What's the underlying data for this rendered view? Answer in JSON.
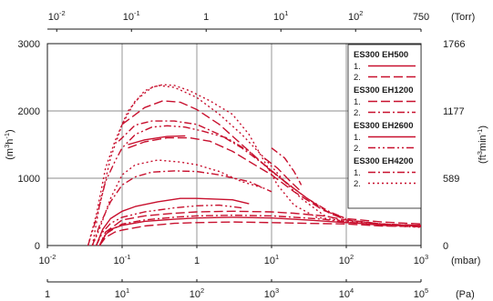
{
  "chart_data": {
    "type": "line",
    "title": "",
    "x_axis_bottom": {
      "unit_label": "(mbar)",
      "scale": "log",
      "range": [
        0.01,
        1000
      ],
      "ticks": [
        {
          "value": 0.01,
          "base": "10",
          "exp": "-2"
        },
        {
          "value": 0.1,
          "base": "10",
          "exp": "-1"
        },
        {
          "value": 1,
          "base": "1",
          "exp": ""
        },
        {
          "value": 10,
          "base": "10",
          "exp": "1"
        },
        {
          "value": 100,
          "base": "10",
          "exp": "2"
        },
        {
          "value": 1000,
          "base": "10",
          "exp": "3"
        }
      ]
    },
    "x_axis_pa": {
      "unit_label": "(Pa)",
      "scale": "log",
      "ticks": [
        {
          "value": 1,
          "base": "1",
          "exp": ""
        },
        {
          "value": 10,
          "base": "10",
          "exp": "1"
        },
        {
          "value": 100,
          "base": "10",
          "exp": "2"
        },
        {
          "value": 1000,
          "base": "10",
          "exp": "3"
        },
        {
          "value": 10000,
          "base": "10",
          "exp": "4"
        },
        {
          "value": 100000,
          "base": "10",
          "exp": "5"
        }
      ]
    },
    "x_axis_top": {
      "unit_label": "(Torr)",
      "scale": "log",
      "ticks": [
        {
          "value": 0.01,
          "base": "10",
          "exp": "-2"
        },
        {
          "value": 0.1,
          "base": "10",
          "exp": "-1"
        },
        {
          "value": 1,
          "base": "1",
          "exp": ""
        },
        {
          "value": 10,
          "base": "10",
          "exp": "1"
        },
        {
          "value": 100,
          "base": "10",
          "exp": "2"
        },
        {
          "value": 750,
          "base": "750",
          "exp": ""
        }
      ]
    },
    "y_axis_left": {
      "unit_base": "(m",
      "unit_sup1": "3",
      "unit_mid": "h",
      "unit_sup2": "-1",
      "unit_end": ")",
      "range": [
        0,
        3000
      ],
      "ticks": [
        "0",
        "1000",
        "2000",
        "3000"
      ]
    },
    "y_axis_right": {
      "unit_base": "(ft",
      "unit_sup1": "3",
      "unit_mid": "min",
      "unit_sup2": "-1",
      "unit_end": ")",
      "ticks": [
        {
          "value": 0,
          "label": "0"
        },
        {
          "value": 589,
          "label": "589"
        },
        {
          "value": 1177,
          "label": "1177"
        },
        {
          "value": 1766,
          "label": "1766"
        }
      ]
    },
    "grid": true,
    "line_color": "#c8102e",
    "legend": {
      "placement": "top-right",
      "groups": [
        {
          "title": "ES300 EH500",
          "entries": [
            "1.",
            "2."
          ]
        },
        {
          "title": "ES300 EH1200",
          "entries": [
            "1.",
            "2."
          ]
        },
        {
          "title": "ES300 EH2600",
          "entries": [
            "1.",
            "2."
          ]
        },
        {
          "title": "ES300 EH4200",
          "entries": [
            "1.",
            "2."
          ]
        }
      ]
    },
    "series": [
      {
        "group": 0,
        "entry": 0,
        "points": [
          [
            0.05,
            0
          ],
          [
            0.06,
            160
          ],
          [
            0.07,
            240
          ],
          [
            0.1,
            300
          ],
          [
            0.2,
            360
          ],
          [
            0.5,
            390
          ],
          [
            1,
            410
          ],
          [
            3,
            420
          ],
          [
            10,
            410
          ],
          [
            30,
            380
          ],
          [
            100,
            340
          ],
          [
            300,
            310
          ],
          [
            1000,
            300
          ]
        ]
      },
      {
        "group": 0,
        "entry": 1,
        "points": [
          [
            0.05,
            0
          ],
          [
            0.06,
            120
          ],
          [
            0.08,
            200
          ],
          [
            0.1,
            230
          ],
          [
            0.2,
            290
          ],
          [
            0.5,
            330
          ],
          [
            1,
            340
          ],
          [
            3,
            350
          ],
          [
            10,
            340
          ],
          [
            30,
            330
          ],
          [
            100,
            320
          ],
          [
            300,
            290
          ],
          [
            1000,
            280
          ]
        ]
      },
      {
        "group": 1,
        "entry": 0,
        "points": [
          [
            0.05,
            0
          ],
          [
            0.06,
            200
          ],
          [
            0.08,
            300
          ],
          [
            0.1,
            380
          ],
          [
            0.2,
            440
          ],
          [
            0.5,
            480
          ],
          [
            1,
            500
          ],
          [
            3,
            510
          ],
          [
            10,
            500
          ],
          [
            20,
            480
          ],
          [
            50,
            440
          ],
          [
            100,
            380
          ],
          [
            300,
            320
          ],
          [
            1000,
            300
          ]
        ]
      },
      {
        "group": 1,
        "entry": 1,
        "points": [
          [
            0.05,
            0
          ],
          [
            0.06,
            170
          ],
          [
            0.08,
            260
          ],
          [
            0.1,
            320
          ],
          [
            0.2,
            380
          ],
          [
            0.5,
            420
          ],
          [
            1,
            440
          ],
          [
            3,
            450
          ],
          [
            10,
            440
          ],
          [
            20,
            420
          ],
          [
            50,
            390
          ],
          [
            100,
            350
          ],
          [
            300,
            300
          ],
          [
            1000,
            290
          ]
        ]
      },
      {
        "group": 2,
        "entry": 0,
        "points": [
          [
            0.045,
            0
          ],
          [
            0.055,
            240
          ],
          [
            0.07,
            400
          ],
          [
            0.1,
            510
          ],
          [
            0.15,
            580
          ],
          [
            0.3,
            650
          ],
          [
            0.6,
            700
          ],
          [
            1,
            700
          ],
          [
            3,
            680
          ],
          [
            5,
            620
          ]
        ]
      },
      {
        "group": 2,
        "entry": 1,
        "points": [
          [
            0.045,
            0
          ],
          [
            0.055,
            200
          ],
          [
            0.07,
            330
          ],
          [
            0.1,
            420
          ],
          [
            0.2,
            500
          ],
          [
            0.5,
            560
          ],
          [
            1,
            590
          ],
          [
            2,
            600
          ],
          [
            4,
            560
          ]
        ]
      },
      {
        "group": 3,
        "entry": 0,
        "points": [
          [
            0.04,
            0
          ],
          [
            0.05,
            300
          ],
          [
            0.07,
            650
          ],
          [
            0.1,
            900
          ],
          [
            0.15,
            1020
          ],
          [
            0.25,
            1090
          ],
          [
            0.5,
            1110
          ],
          [
            1,
            1100
          ],
          [
            2,
            1050
          ],
          [
            5,
            950
          ],
          [
            10,
            800
          ]
        ]
      },
      {
        "group": 3,
        "entry": 1,
        "points": [
          [
            0.04,
            0
          ],
          [
            0.05,
            250
          ],
          [
            0.07,
            700
          ],
          [
            0.1,
            1050
          ],
          [
            0.15,
            1200
          ],
          [
            0.3,
            1270
          ],
          [
            0.6,
            1240
          ],
          [
            1,
            1200
          ],
          [
            2,
            1100
          ],
          [
            4,
            950
          ],
          [
            8,
            850
          ]
        ]
      }
    ],
    "overlay_series": [
      {
        "style": "long-dash",
        "points": [
          [
            0.12,
            1450
          ],
          [
            0.2,
            1540
          ],
          [
            0.4,
            1600
          ],
          [
            0.8,
            1600
          ],
          [
            1.5,
            1550
          ],
          [
            3,
            1400
          ],
          [
            5,
            1250
          ],
          [
            10,
            1050
          ],
          [
            20,
            800
          ],
          [
            50,
            520
          ],
          [
            100,
            400
          ],
          [
            300,
            350
          ],
          [
            1000,
            320
          ]
        ]
      },
      {
        "style": "solid",
        "points": [
          [
            0.12,
            1500
          ],
          [
            0.2,
            1570
          ],
          [
            0.4,
            1620
          ],
          [
            0.7,
            1630
          ]
        ]
      },
      {
        "style": "dash-dot",
        "points": [
          [
            0.09,
            1550
          ],
          [
            0.15,
            1790
          ],
          [
            0.25,
            1850
          ],
          [
            0.5,
            1850
          ],
          [
            1,
            1800
          ],
          [
            2,
            1650
          ],
          [
            4,
            1450
          ],
          [
            8,
            1200
          ],
          [
            15,
            950
          ],
          [
            30,
            700
          ],
          [
            60,
            500
          ],
          [
            100,
            400
          ]
        ]
      },
      {
        "style": "long-dash",
        "points": [
          [
            0.1,
            1800
          ],
          [
            0.2,
            2050
          ],
          [
            0.35,
            2150
          ],
          [
            0.6,
            2130
          ],
          [
            1,
            2020
          ],
          [
            2,
            1800
          ],
          [
            4,
            1500
          ],
          [
            8,
            1200
          ],
          [
            15,
            950
          ],
          [
            30,
            700
          ],
          [
            60,
            480
          ],
          [
            100,
            380
          ],
          [
            300,
            320
          ],
          [
            1000,
            290
          ]
        ]
      },
      {
        "style": "dotted",
        "points": [
          [
            0.035,
            0
          ],
          [
            0.045,
            450
          ],
          [
            0.06,
            1150
          ],
          [
            0.08,
            1550
          ],
          [
            0.12,
            2000
          ],
          [
            0.2,
            2300
          ],
          [
            0.3,
            2380
          ],
          [
            0.5,
            2350
          ],
          [
            1,
            2200
          ],
          [
            2,
            1950
          ],
          [
            4,
            1650
          ],
          [
            8,
            1300
          ],
          [
            15,
            950
          ],
          [
            25,
            700
          ],
          [
            50,
            450
          ],
          [
            100,
            350
          ],
          [
            300,
            300
          ],
          [
            1000,
            270
          ]
        ]
      },
      {
        "style": "dash-dot",
        "points": [
          [
            10,
            1450
          ],
          [
            15,
            1300
          ],
          [
            20,
            1100
          ],
          [
            25,
            900
          ]
        ]
      },
      {
        "style": "long-dash",
        "points": [
          [
            8,
            1300
          ],
          [
            12,
            1150
          ],
          [
            18,
            950
          ],
          [
            25,
            800
          ]
        ]
      },
      {
        "style": "dash-dot-dot",
        "points": [
          [
            0.035,
            0
          ],
          [
            0.045,
            400
          ],
          [
            0.06,
            950
          ],
          [
            0.08,
            1250
          ],
          [
            0.1,
            1450
          ],
          [
            0.15,
            1650
          ],
          [
            0.25,
            1760
          ],
          [
            0.4,
            1780
          ],
          [
            0.7,
            1760
          ],
          [
            1.2,
            1700
          ],
          [
            2.5,
            1600
          ],
          [
            5,
            1400
          ],
          [
            10,
            1100
          ],
          [
            20,
            850
          ]
        ]
      }
    ],
    "extra_lines": [
      {
        "style": "dotted",
        "points": [
          [
            0.04,
            0
          ],
          [
            0.05,
            600
          ],
          [
            0.07,
            1300
          ],
          [
            0.1,
            1800
          ],
          [
            0.15,
            2150
          ],
          [
            0.25,
            2350
          ],
          [
            0.35,
            2390
          ],
          [
            0.5,
            2380
          ],
          [
            0.8,
            2300
          ],
          [
            1.5,
            2150
          ],
          [
            3,
            1950
          ],
          [
            5,
            1650
          ],
          [
            8,
            1250
          ],
          [
            12,
            900
          ],
          [
            20,
            600
          ],
          [
            40,
            420
          ],
          [
            100,
            360
          ],
          [
            300,
            320
          ],
          [
            1000,
            290
          ]
        ]
      }
    ]
  }
}
